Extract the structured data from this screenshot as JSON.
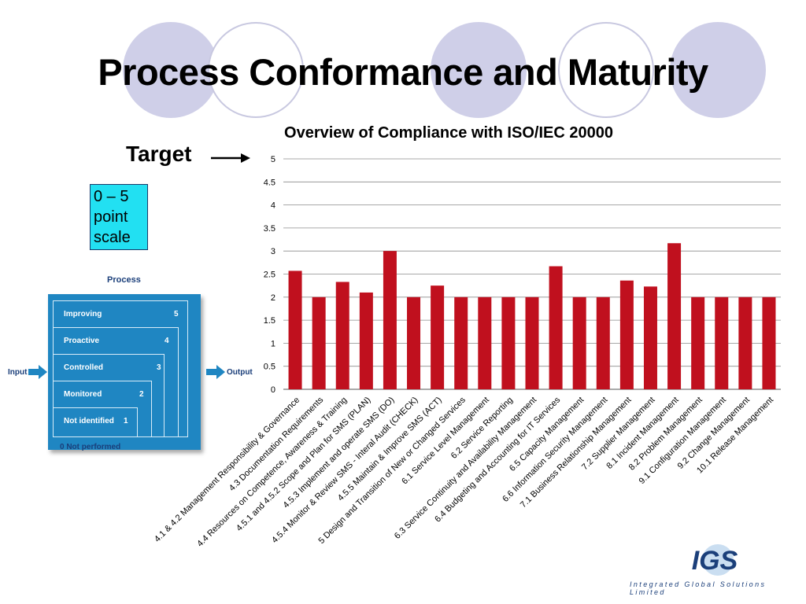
{
  "slide": {
    "title": "Process Conformance and Maturity",
    "target_label": "Target",
    "scale_note": [
      "0 – 5",
      "point",
      "scale"
    ],
    "accent_colors": {
      "bar": "#c0101e",
      "circle_fill": "#cfcfe8",
      "scale_box": "#22e0f2"
    }
  },
  "chart_data": {
    "type": "bar",
    "title": "Overview of Compliance with ISO/IEC 20000",
    "xlabel": "",
    "ylabel": "",
    "ylim": [
      0,
      5
    ],
    "yticks": [
      "0",
      "0.5",
      "1",
      "1.5",
      "2",
      "2.5",
      "3",
      "3.5",
      "4",
      "4.5",
      "5"
    ],
    "grid": true,
    "categories": [
      "4.1 & 4.2 Management Responsibility & Governance",
      "4.3 Documentation Requirements",
      "4.4 Resources on Competence, Awareness & Training",
      "4.5.1 and 4.5.2 Scope and Plan for SMS (PLAN)",
      "4.5.3 Implement and operate SMS (DO)",
      "4.5.4 Monitor & Review SMS - Interal Audit (CHECK)",
      "4.5.5 Maintain & Improve SMS (ACT)",
      "5 Design and Transition of New or Changed Services",
      "6.1 Service Level Management",
      "6.2 Service Reporting",
      "6.3 Service Continuity and Availability Management",
      "6.4 Budgeting and Accounting for IT Services",
      "6.5 Capacity Management",
      "6.6 Information Security Management",
      "7.1 Business Relationship Management",
      "7.2 Supplier Management",
      "8.1 Incident Management",
      "8.2 Problem Management",
      "9.1 Configuration Management",
      "9.2 Change Management",
      "10.1 Release Management"
    ],
    "values": [
      2.57,
      2.0,
      2.33,
      2.1,
      3.0,
      2.0,
      2.25,
      2.0,
      2.0,
      2.0,
      2.0,
      2.67,
      2.0,
      2.0,
      2.36,
      2.23,
      3.17,
      2.0,
      2.0,
      2.0,
      2.0
    ]
  },
  "process_diagram": {
    "title": "Process",
    "input_label": "Input",
    "output_label": "Output",
    "levels": [
      {
        "label": "Improving",
        "number": "5"
      },
      {
        "label": "Proactive",
        "number": "4"
      },
      {
        "label": "Controlled",
        "number": "3"
      },
      {
        "label": "Monitored",
        "number": "2"
      },
      {
        "label": "Not identified",
        "number": "1"
      }
    ],
    "footer": "0 Not performed"
  },
  "logo": {
    "mark": "IGS",
    "company": "Integrated Global Solutions Limited"
  }
}
